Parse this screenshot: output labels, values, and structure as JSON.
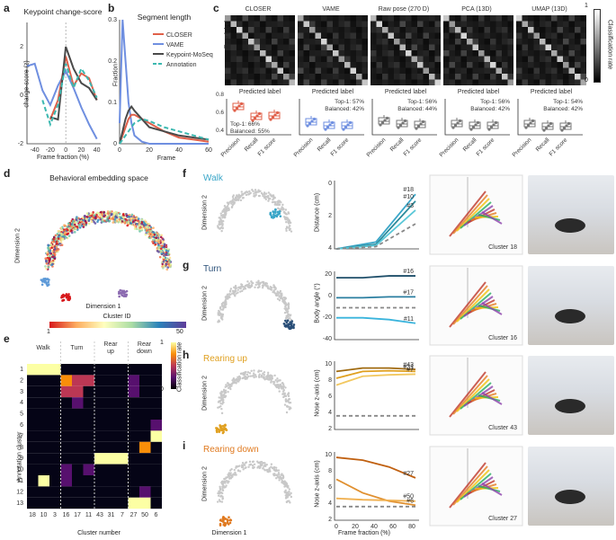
{
  "panels": {
    "a": "a",
    "b": "b",
    "c": "c",
    "d": "d",
    "e": "e",
    "f": "f",
    "g": "g",
    "h": "h",
    "i": "i"
  },
  "colors": {
    "closer": "#e0604a",
    "vame": "#6f8fe0",
    "kms": "#4a4a4a",
    "annot": "#3cb8b0"
  },
  "panel_a": {
    "title": "Keypoint change-score",
    "ylabel": "change-score (z)",
    "xlabel": "Frame fraction (%)",
    "chart_data": {
      "type": "line",
      "x": [
        -50,
        -40,
        -30,
        -20,
        -10,
        0,
        10,
        20,
        30,
        40
      ],
      "series": [
        {
          "name": "VAME",
          "values": [
            1.2,
            1.3,
            0.2,
            -0.4,
            0.4,
            1.0,
            0.3,
            -0.5,
            -1.2,
            -1.8
          ]
        },
        {
          "name": "CLOSER",
          "values": [
            null,
            null,
            null,
            -1.0,
            -0.2,
            1.6,
            0.4,
            0.9,
            0.7,
            -0.2
          ]
        },
        {
          "name": "Keypoint-MoSeq",
          "values": [
            null,
            null,
            null,
            -0.9,
            -1.0,
            2.0,
            1.1,
            0.5,
            0.3,
            -0.2
          ]
        },
        {
          "name": "Annotation",
          "values": [
            null,
            null,
            -0.2,
            -1.2,
            -0.4,
            1.3,
            0.3,
            1.1,
            0.6,
            -0.1
          ]
        }
      ],
      "ylim": [
        -2,
        3
      ],
      "yticks": [
        "-2",
        "0",
        "2"
      ],
      "xticks": [
        "-40",
        "-20",
        "0",
        "20",
        "40"
      ]
    }
  },
  "panel_b": {
    "title": "Segment length",
    "ylabel": "Fraction",
    "xlabel": "Frame",
    "legend": [
      "CLOSER",
      "VAME",
      "Keypoint-MoSeq",
      "Annotation"
    ],
    "chart_data": {
      "type": "line",
      "x": [
        0,
        2,
        4,
        6,
        8,
        10,
        15,
        20,
        30,
        40,
        50,
        60
      ],
      "series": [
        {
          "name": "VAME",
          "values": [
            0.05,
            0.3,
            0.2,
            0.1,
            0.05,
            0.02,
            0.005,
            0,
            0,
            0,
            0,
            0
          ]
        },
        {
          "name": "CLOSER",
          "values": [
            0,
            0.02,
            0.04,
            0.06,
            0.07,
            0.07,
            0.06,
            0.05,
            0.03,
            0.015,
            0.01,
            0.005
          ]
        },
        {
          "name": "Keypoint-MoSeq",
          "values": [
            0,
            0.03,
            0.06,
            0.08,
            0.09,
            0.08,
            0.06,
            0.04,
            0.03,
            0.02,
            0.015,
            0.01
          ]
        },
        {
          "name": "Annotation",
          "values": [
            0,
            0.01,
            0.02,
            0.03,
            0.04,
            0.05,
            0.06,
            0.055,
            0.04,
            0.03,
            0.02,
            0.01
          ]
        }
      ],
      "ylim": [
        0,
        0.3
      ],
      "yticks": [
        "0",
        "0.1",
        "0.2",
        "0.3"
      ],
      "xticks": [
        "0",
        "20",
        "40",
        "60"
      ]
    }
  },
  "panel_c": {
    "methods": [
      {
        "name": "CLOSER",
        "top1": "Top-1: 66%",
        "balanced": "Balanced: 55%"
      },
      {
        "name": "VAME",
        "top1": "Top-1: 57%",
        "balanced": "Balanced: 42%"
      },
      {
        "name": "Raw pose (270 D)",
        "top1": "Top-1: 56%",
        "balanced": "Balanced: 44%"
      },
      {
        "name": "PCA (13D)",
        "top1": "Top-1: 56%",
        "balanced": "Balanced: 42%"
      },
      {
        "name": "UMAP (13D)",
        "top1": "Top-1: 54%",
        "balanced": "Balanced: 42%"
      }
    ],
    "true_label": "True label",
    "pred_label": "Predicted label",
    "metrics": [
      "Precision",
      "Recall",
      "F1 score"
    ],
    "colorbar_label": "Classification rate",
    "cb_max": "1",
    "cb_min": "0",
    "yticks": [
      "0.8",
      "0.6",
      "0.4"
    ]
  },
  "panel_d": {
    "title": "Behavioral embedding space",
    "xlabel": "Dimension 1",
    "ylabel": "Dimension 2",
    "colorbar": {
      "label": "Cluster ID",
      "min": "1",
      "max": "50"
    }
  },
  "panel_e": {
    "xlabel": "Cluster number",
    "ylabel": "Annotation cluster",
    "colorbar_label": "Classification rate",
    "cb_max": "1",
    "cb_min": "0",
    "groups": [
      {
        "label": "Walk",
        "color": "#3a9fc0"
      },
      {
        "label": "Turn",
        "color": "#1f4f7a"
      },
      {
        "label": "Rear up",
        "color": "#e0a020"
      },
      {
        "label": "Rear down",
        "color": "#e07a20"
      }
    ],
    "rows": [
      "1",
      "2",
      "3",
      "4",
      "5",
      "6",
      "7",
      "8",
      "9",
      "10",
      "11",
      "12",
      "13"
    ],
    "cols": [
      "18",
      "10",
      "3",
      "16",
      "17",
      "11",
      "43",
      "31",
      "7",
      "27",
      "50",
      "6"
    ]
  },
  "behaviors": [
    {
      "name": "Walk",
      "color": "#3aa6c8",
      "ylabel": "Distance (cm)",
      "yticks": [
        "0",
        "2",
        "4"
      ],
      "labels": [
        "#18",
        "#10",
        "#3"
      ],
      "cluster": "Cluster 18"
    },
    {
      "name": "Turn",
      "color": "#2a4f78",
      "ylabel": "Body angle (°)",
      "yticks": [
        "20",
        "0",
        "-20",
        "-40"
      ],
      "labels": [
        "#16",
        "#17",
        "#11"
      ],
      "cluster": "Cluster 16"
    },
    {
      "name": "Rearing up",
      "color": "#e0a020",
      "ylabel": "Nose z-axis (cm)",
      "yticks": [
        "10",
        "8",
        "6",
        "4",
        "2"
      ],
      "labels": [
        "#43",
        "#31",
        "#7"
      ],
      "cluster": "Cluster 43"
    },
    {
      "name": "Rearing down",
      "color": "#e07a20",
      "ylabel": "Nose z-axis (cm)",
      "yticks": [
        "10",
        "8",
        "6",
        "4",
        "2"
      ],
      "labels": [
        "#27",
        "#6",
        "#50"
      ],
      "cluster": "Cluster 27"
    }
  ],
  "lines_xlabel": "Frame fraction (%)",
  "lines_xticks": [
    "0",
    "20",
    "40",
    "60",
    "80"
  ],
  "dim1": "Dimension 1",
  "dim2": "Dimension 2"
}
